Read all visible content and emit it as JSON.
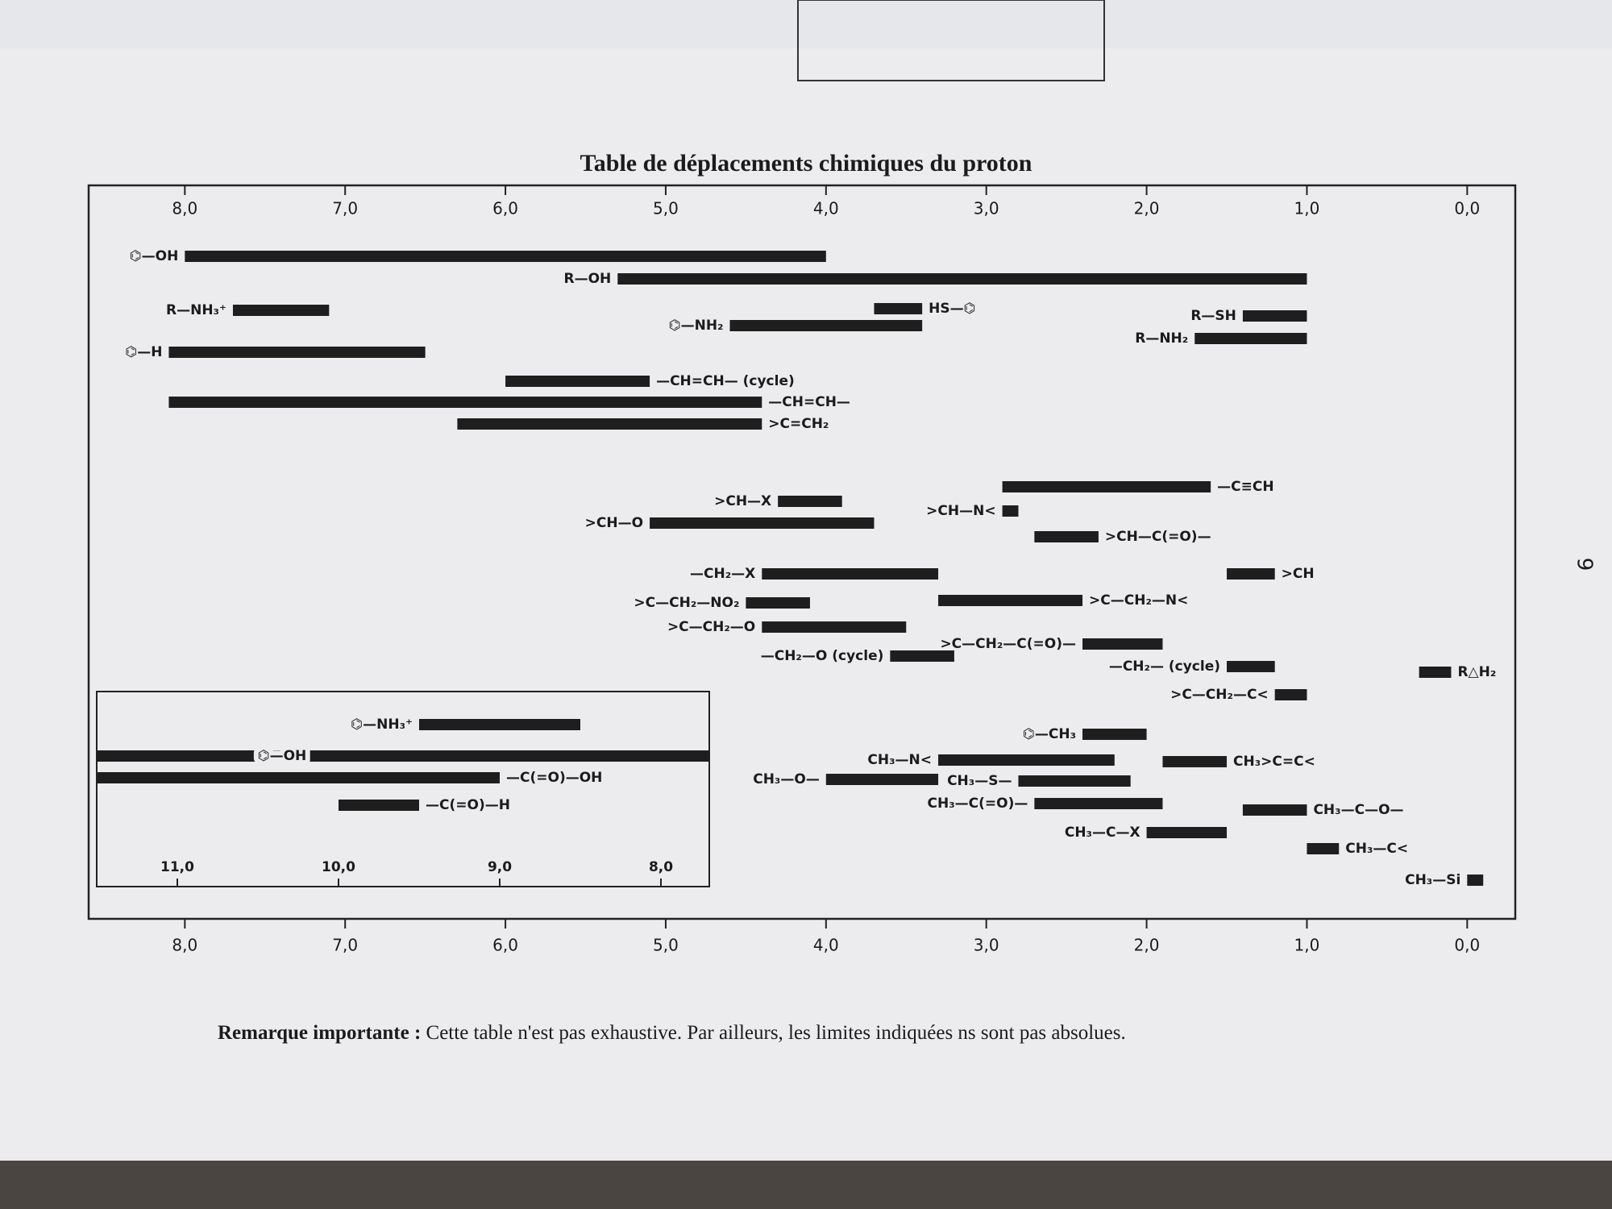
{
  "chart_data": [
    {
      "type": "range",
      "title": "Table de déplacements chimiques du proton",
      "color": "#1e1e1e",
      "xlim": [
        8.6,
        -0.3
      ],
      "xticks": [
        {
          "value": 8,
          "label": "8,0"
        },
        {
          "value": 7,
          "label": "7,0"
        },
        {
          "value": 6,
          "label": "6,0"
        },
        {
          "value": 5,
          "label": "5,0"
        },
        {
          "value": 4,
          "label": "4,0"
        },
        {
          "value": 3,
          "label": "3,0"
        },
        {
          "value": 2,
          "label": "2,0"
        },
        {
          "value": 1,
          "label": "1,0"
        },
        {
          "value": 0,
          "label": "0,0"
        }
      ],
      "bars": [
        {
          "label": "⌬—OH",
          "from": 8.0,
          "to": 4.0
        },
        {
          "label": "R—OH",
          "from": 5.3,
          "to": 1.0
        },
        {
          "label": "R—NH₃⁺",
          "from": 7.7,
          "to": 7.1
        },
        {
          "label": "HS—⌬",
          "from": 3.7,
          "to": 3.4
        },
        {
          "label": "⌬—NH₂",
          "from": 4.6,
          "to": 3.4
        },
        {
          "label": "R—SH",
          "from": 1.4,
          "to": 1.0
        },
        {
          "label": "R—NH₂",
          "from": 1.7,
          "to": 1.0
        },
        {
          "label": "⌬—H",
          "from": 8.1,
          "to": 6.5
        },
        {
          "label": "—CH=CH— (cycle)",
          "from": 6.0,
          "to": 5.1
        },
        {
          "label": "—CH=CH—",
          "from": 8.1,
          "to": 4.4
        },
        {
          "label": ">C=CH₂",
          "from": 6.3,
          "to": 4.4
        },
        {
          "label": "—C≡CH",
          "from": 2.9,
          "to": 1.6
        },
        {
          "label": ">CH—X",
          "from": 4.3,
          "to": 3.9
        },
        {
          "label": ">CH—N<",
          "from": 2.9,
          "to": 2.8
        },
        {
          "label": ">CH—O",
          "from": 5.1,
          "to": 3.7
        },
        {
          "label": ">CH—C(=O)—",
          "from": 2.7,
          "to": 2.3
        },
        {
          "label": "—CH₂—X",
          "from": 4.4,
          "to": 3.3
        },
        {
          "label": ">CH",
          "from": 1.5,
          "to": 1.2
        },
        {
          "label": ">C—CH₂—NO₂",
          "from": 4.5,
          "to": 4.1
        },
        {
          "label": ">C—CH₂—N<",
          "from": 3.3,
          "to": 2.4
        },
        {
          "label": ">C—CH₂—O",
          "from": 4.4,
          "to": 3.5
        },
        {
          "label": ">C—CH₂—C(=O)—",
          "from": 2.4,
          "to": 1.9
        },
        {
          "label": "—CH₂—O (cycle)",
          "from": 3.6,
          "to": 3.2
        },
        {
          "label": "—CH₂— (cycle)",
          "from": 1.5,
          "to": 1.2
        },
        {
          "label": "R△H₂",
          "from": 0.3,
          "to": 0.1
        },
        {
          "label": ">C—CH₂—C<",
          "from": 1.2,
          "to": 1.0
        },
        {
          "label": "⌬—CH₃",
          "from": 2.4,
          "to": 2.0
        },
        {
          "label": "CH₃—N<",
          "from": 3.3,
          "to": 2.2
        },
        {
          "label": "CH₃>C=C<",
          "from": 1.9,
          "to": 1.5
        },
        {
          "label": "CH₃—O—",
          "from": 4.0,
          "to": 3.3
        },
        {
          "label": "CH₃—S—",
          "from": 2.8,
          "to": 2.1
        },
        {
          "label": "CH₃—C(=O)—",
          "from": 2.7,
          "to": 1.9
        },
        {
          "label": "CH₃—C—O—",
          "from": 1.4,
          "to": 1.0
        },
        {
          "label": "CH₃—C—X",
          "from": 2.0,
          "to": 1.5
        },
        {
          "label": "CH₃—C<",
          "from": 1.0,
          "to": 0.8
        },
        {
          "label": "CH₃—Si",
          "from": 0.0,
          "to": -0.1
        }
      ]
    },
    {
      "type": "range",
      "color": "#1e1e1e",
      "xlim": [
        11.5,
        7.7
      ],
      "xticks": [
        {
          "value": 11,
          "label": "11,0"
        },
        {
          "value": 10,
          "label": "10,0"
        },
        {
          "value": 9,
          "label": "9,0"
        },
        {
          "value": 8,
          "label": "8,0"
        }
      ],
      "bars": [
        {
          "label": "⌬—NH₃⁺",
          "from": 9.5,
          "to": 8.5
        },
        {
          "label": "⌬—OH",
          "from": 11.5,
          "to": 7.7
        },
        {
          "label": "—C(=O)—OH",
          "from": 11.5,
          "to": 9.0
        },
        {
          "label": "—C(=O)—H",
          "from": 10.0,
          "to": 9.5
        }
      ]
    }
  ],
  "note": {
    "heading": "Remarque importante :",
    "text": "Cette table n'est pas exhaustive. Par ailleurs, les limites indiquées ns sont pas absolues."
  },
  "page_number": "9"
}
